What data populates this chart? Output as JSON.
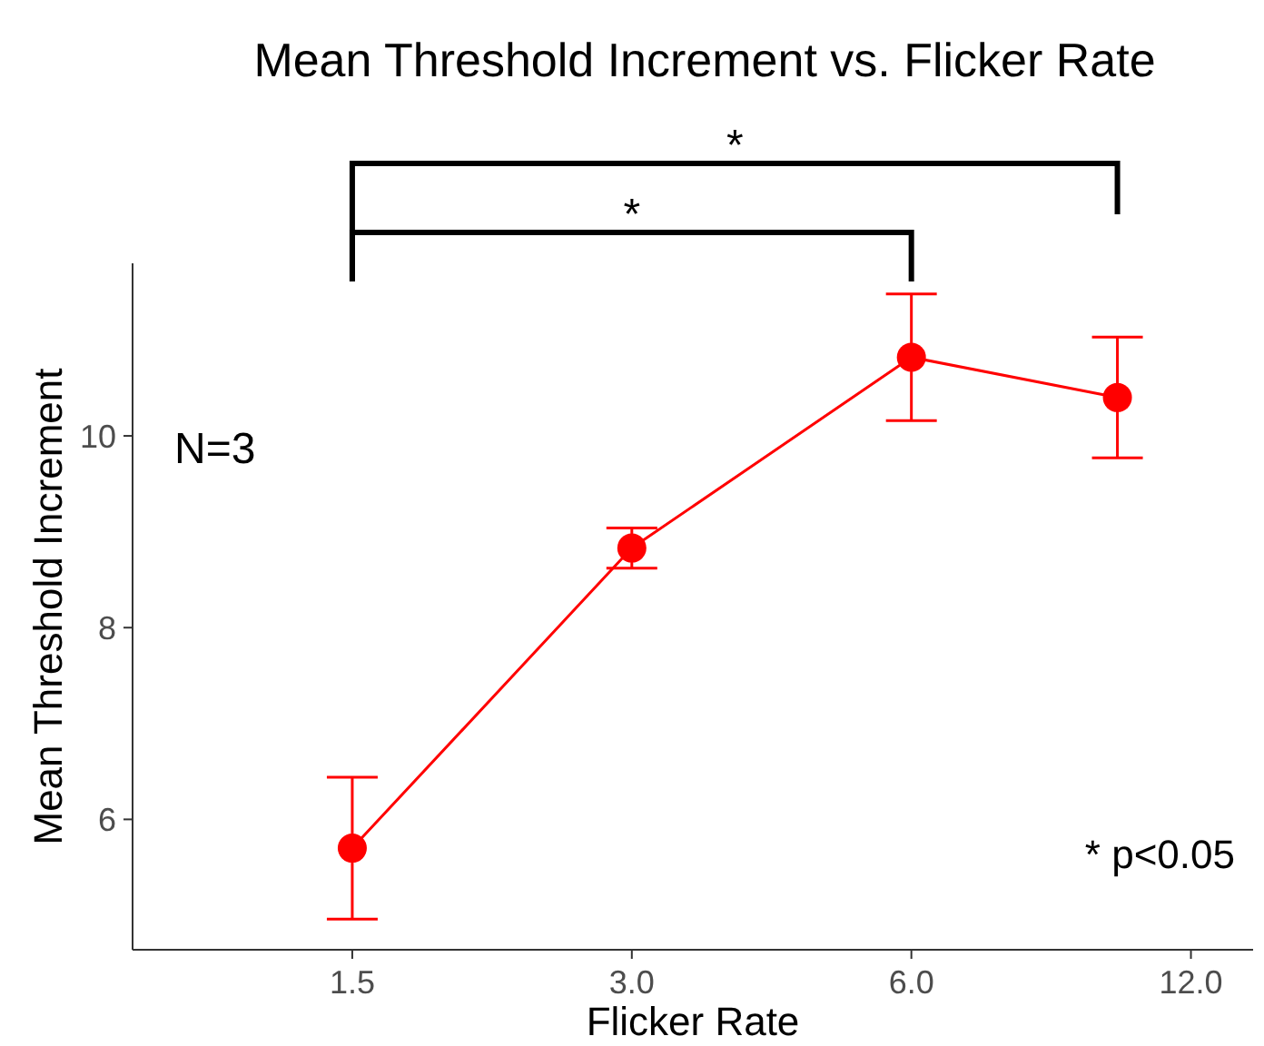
{
  "chart_data": {
    "type": "line",
    "title": "Mean Threshold Increment vs. Flicker Rate",
    "xlabel": "Flicker Rate",
    "ylabel": "Mean Threshold Increment",
    "x": [
      1.5,
      3.0,
      6.0,
      10.0
    ],
    "series": [
      {
        "color": "#ff0000",
        "values": [
          5.7,
          8.83,
          10.82,
          10.4
        ],
        "errors": [
          0.74,
          0.21,
          0.66,
          0.63
        ]
      }
    ],
    "log": "x",
    "xlim": [
      0.87,
      14
    ],
    "xticks": [
      {
        "value": 1.5,
        "label": "1.5"
      },
      {
        "value": 3,
        "label": "3.0"
      },
      {
        "value": 6,
        "label": "6.0"
      },
      {
        "value": 12,
        "label": "12.0"
      }
    ],
    "ylim": [
      4.64,
      11.8
    ],
    "yticks": [
      6,
      8,
      10
    ],
    "grid": false,
    "marker": "circle",
    "line_style": "solid",
    "annotations": [
      "*",
      "*",
      "N=3",
      "* p<0.05"
    ]
  }
}
